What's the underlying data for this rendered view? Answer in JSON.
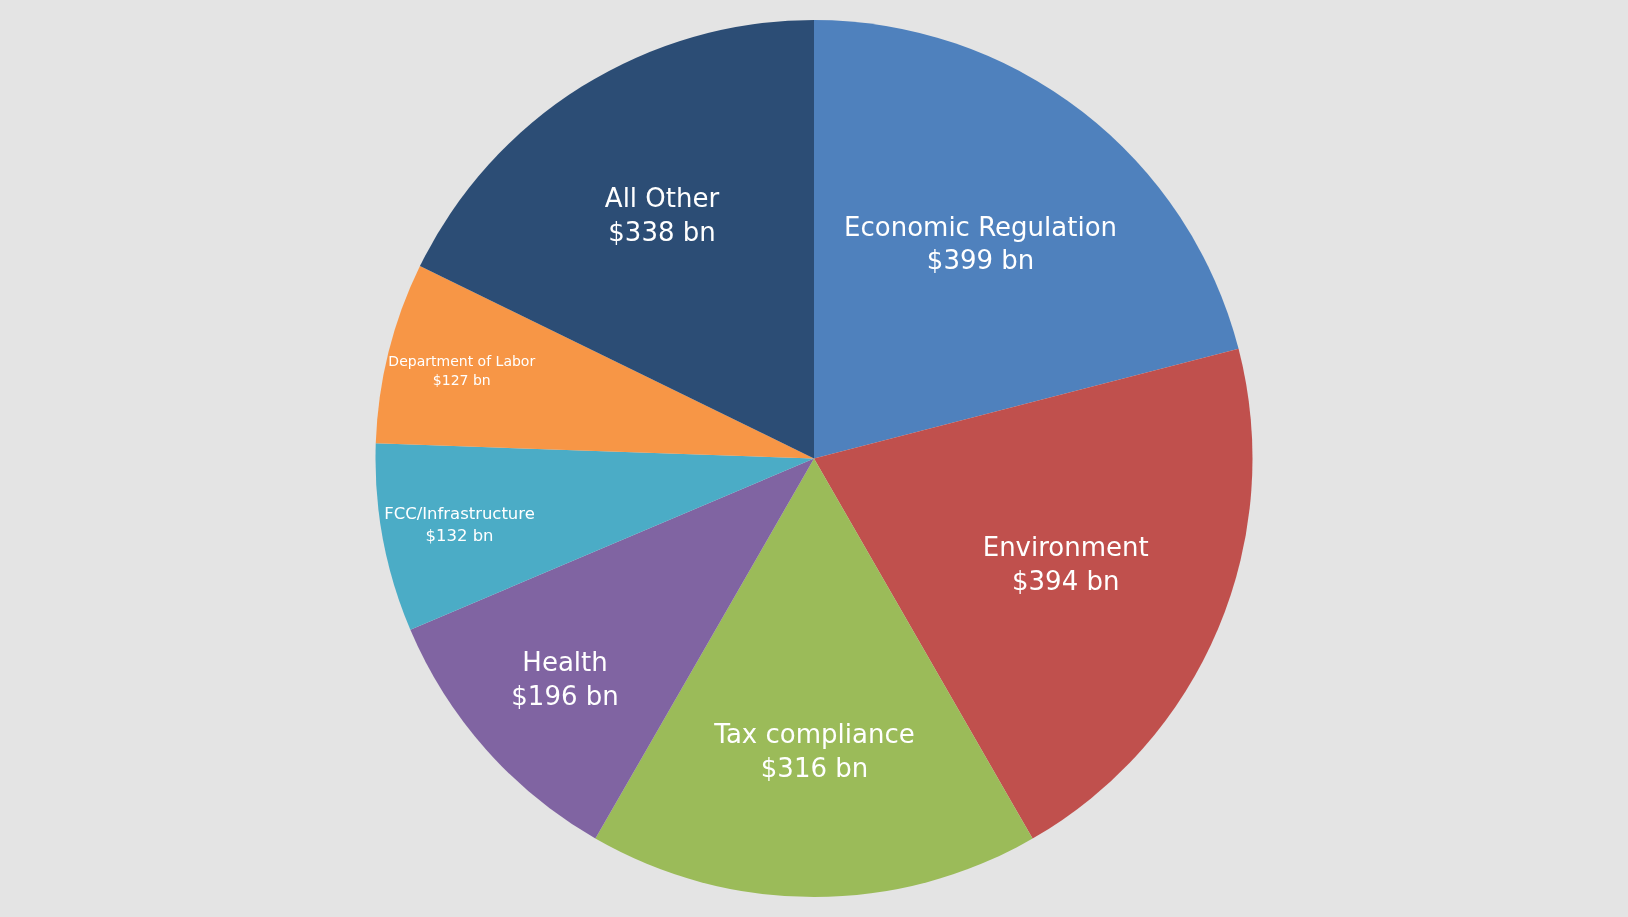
{
  "chart_data": {
    "type": "pie",
    "categories": [
      "Economic Regulation",
      "Environment",
      "Tax compliance",
      "Health",
      "FCC/Infrastructure",
      "Department of Labor",
      "All Other"
    ],
    "values": [
      399,
      394,
      316,
      196,
      132,
      127,
      338
    ],
    "value_labels": [
      "$399 bn",
      "$394 bn",
      "$316 bn",
      "$196 bn",
      "$132 bn",
      "$127 bn",
      "$338 bn"
    ],
    "colors": [
      "#4f81bd",
      "#c0504d",
      "#9bbb59",
      "#8064a2",
      "#4bacc6",
      "#f79646",
      "#2c4d75"
    ],
    "legend": false
  }
}
